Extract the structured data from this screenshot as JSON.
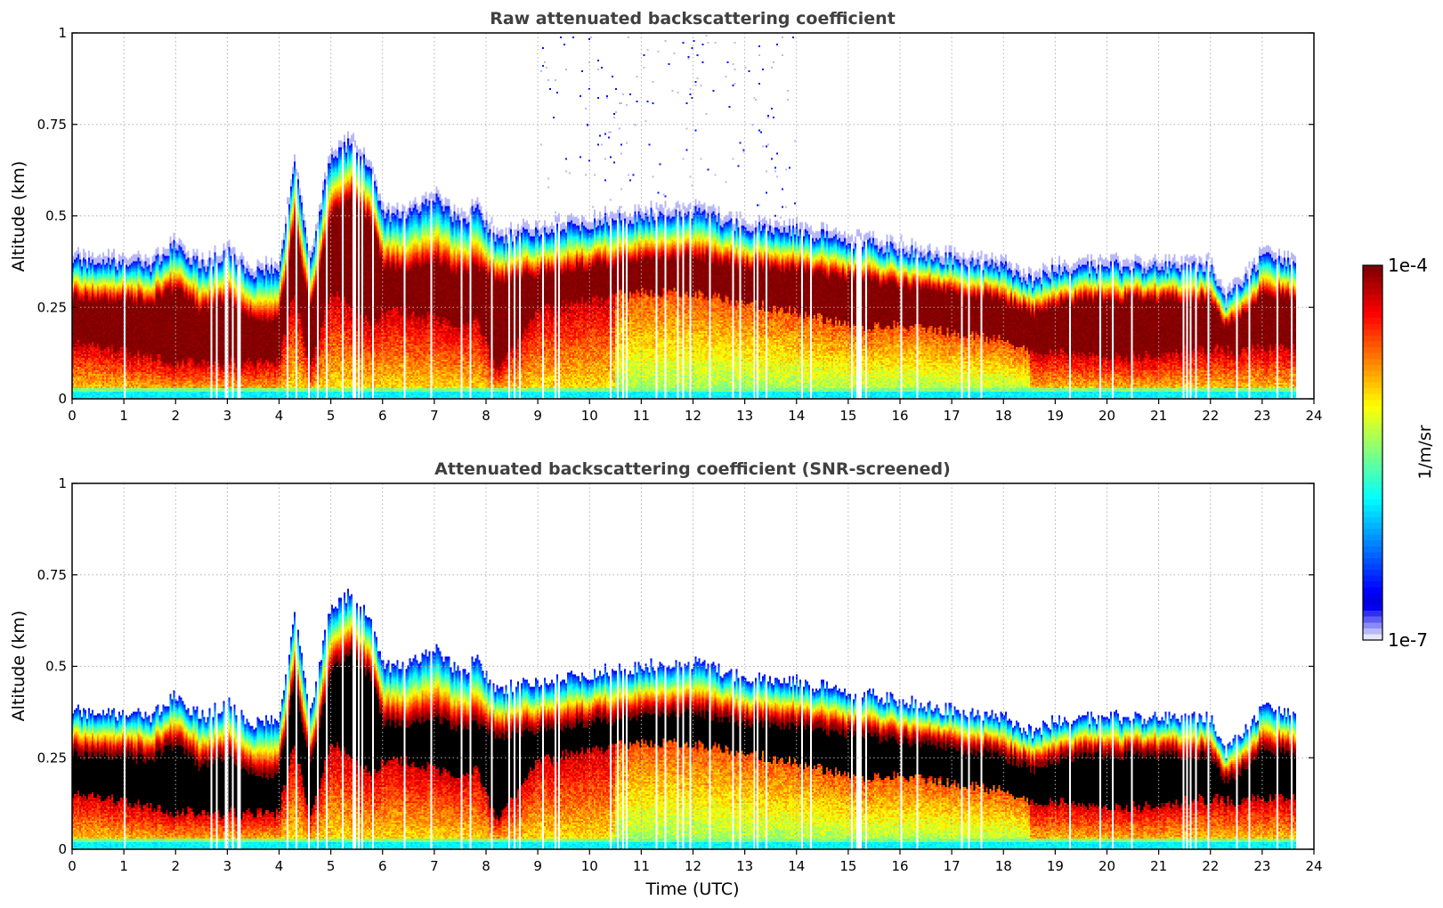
{
  "chart_data": [
    {
      "type": "heatmap",
      "title": "Raw attenuated backscattering coefficient",
      "xlabel": "",
      "ylabel": "Altitude (km)",
      "xlim": [
        0,
        24
      ],
      "ylim": [
        0,
        1
      ],
      "xticks": [
        "0",
        "1",
        "2",
        "3",
        "4",
        "5",
        "6",
        "7",
        "8",
        "9",
        "10",
        "11",
        "12",
        "13",
        "14",
        "15",
        "16",
        "17",
        "18",
        "19",
        "20",
        "21",
        "22",
        "23",
        "24"
      ],
      "yticks": [
        "0",
        "0.25",
        "0.5",
        "0.75",
        "1"
      ],
      "grid": true,
      "screened": false,
      "data_end_time": 23.65,
      "profile_times": [
        0,
        0.5,
        1,
        1.5,
        2,
        2.5,
        3,
        3.5,
        4,
        4.3,
        4.6,
        5,
        5.4,
        5.8,
        6,
        6.5,
        7,
        7.5,
        7.8,
        8.2,
        9,
        10,
        11,
        12,
        13,
        14,
        15,
        16,
        17,
        18,
        18.6,
        19,
        20,
        21,
        22,
        22.3,
        23,
        23.65
      ],
      "layer_top_km": [
        0.38,
        0.37,
        0.37,
        0.36,
        0.42,
        0.36,
        0.4,
        0.34,
        0.36,
        0.64,
        0.38,
        0.66,
        0.7,
        0.62,
        0.5,
        0.5,
        0.55,
        0.48,
        0.52,
        0.44,
        0.46,
        0.48,
        0.5,
        0.51,
        0.47,
        0.46,
        0.43,
        0.41,
        0.38,
        0.36,
        0.32,
        0.35,
        0.36,
        0.36,
        0.36,
        0.27,
        0.38,
        0.38
      ],
      "dense_top_km": [
        0.28,
        0.27,
        0.27,
        0.26,
        0.3,
        0.24,
        0.27,
        0.22,
        0.22,
        0.48,
        0.24,
        0.5,
        0.55,
        0.48,
        0.36,
        0.36,
        0.38,
        0.34,
        0.36,
        0.32,
        0.34,
        0.36,
        0.38,
        0.39,
        0.36,
        0.35,
        0.33,
        0.31,
        0.29,
        0.27,
        0.23,
        0.26,
        0.27,
        0.27,
        0.27,
        0.2,
        0.28,
        0.28
      ],
      "dense_base_km": [
        0.15,
        0.15,
        0.13,
        0.12,
        0.1,
        0.1,
        0.1,
        0.1,
        0.1,
        0.3,
        0.08,
        0.3,
        0.25,
        0.2,
        0.24,
        0.24,
        0.22,
        0.2,
        0.22,
        0.08,
        0.24,
        0.27,
        0.29,
        0.29,
        0.26,
        0.24,
        0.2,
        0.2,
        0.18,
        0.16,
        0.12,
        0.13,
        0.11,
        0.12,
        0.14,
        0.13,
        0.14,
        0.14
      ],
      "colorscale": {
        "label": "1/m/sr",
        "min_label": "1e-7",
        "max_label": "1e-4",
        "min": 1e-07,
        "max": 0.0001,
        "scale": "log",
        "colormap": "jet"
      }
    },
    {
      "type": "heatmap",
      "title": "Attenuated backscattering coefficient (SNR-screened)",
      "xlabel": "Time (UTC)",
      "ylabel": "Altitude (km)",
      "xlim": [
        0,
        24
      ],
      "ylim": [
        0,
        1
      ],
      "xticks": [
        "0",
        "1",
        "2",
        "3",
        "4",
        "5",
        "6",
        "7",
        "8",
        "9",
        "10",
        "11",
        "12",
        "13",
        "14",
        "15",
        "16",
        "17",
        "18",
        "19",
        "20",
        "21",
        "22",
        "23",
        "24"
      ],
      "yticks": [
        "0",
        "0.25",
        "0.5",
        "0.75",
        "1"
      ],
      "grid": true,
      "screened": true,
      "data_end_time": 23.65,
      "colorscale": {
        "label": "1/m/sr",
        "min_label": "1e-7",
        "max_label": "1e-4"
      }
    }
  ],
  "colorbar": {
    "label": "1/m/sr",
    "top_label": "1e-4",
    "bottom_label": "1e-7",
    "low_color": "#e6e6fa",
    "high_color": "#800000",
    "screened_color": "#000000"
  }
}
